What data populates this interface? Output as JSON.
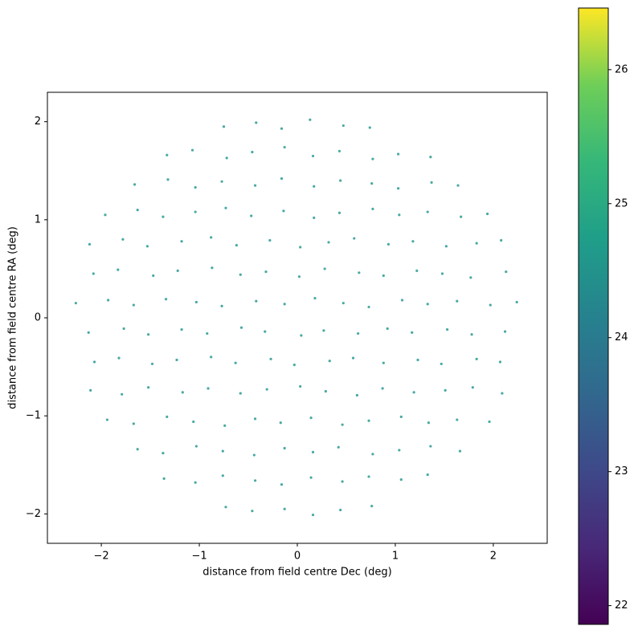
{
  "chart_data": {
    "type": "scatter",
    "x_label": "distance from field centre Dec (deg)",
    "y_label": "distance from field centre RA (deg)",
    "xlim": [
      -2.55,
      2.55
    ],
    "ylim": [
      -2.3,
      2.3
    ],
    "xticks": [
      {
        "value": -2,
        "label": "−2"
      },
      {
        "value": -1,
        "label": "−1"
      },
      0,
      1,
      2
    ],
    "yticks": [
      {
        "value": -2,
        "label": "−2"
      },
      {
        "value": -1,
        "label": "−1"
      },
      0,
      1,
      2
    ],
    "color": "#2a9a93",
    "x": [
      -0.75,
      -0.42,
      -0.16,
      0.13,
      0.47,
      0.74,
      -1.33,
      -1.07,
      -0.72,
      -0.46,
      -0.13,
      0.16,
      0.43,
      0.77,
      1.03,
      1.36,
      -1.66,
      -1.32,
      -1.04,
      -0.77,
      -0.43,
      -0.16,
      0.17,
      0.44,
      0.76,
      1.03,
      1.37,
      1.64,
      -1.96,
      -1.63,
      -1.37,
      -1.04,
      -0.73,
      -0.47,
      -0.14,
      0.17,
      0.43,
      0.77,
      1.04,
      1.33,
      1.67,
      1.94,
      -2.12,
      -1.78,
      -1.53,
      -1.18,
      -0.88,
      -0.62,
      -0.28,
      0.03,
      0.32,
      0.58,
      0.93,
      1.18,
      1.52,
      1.83,
      2.08,
      -2.08,
      -1.83,
      -1.47,
      -1.22,
      -0.87,
      -0.58,
      -0.32,
      0.02,
      0.28,
      0.63,
      0.88,
      1.22,
      1.48,
      1.77,
      2.13,
      -2.26,
      -1.93,
      -1.67,
      -1.34,
      -1.03,
      -0.77,
      -0.42,
      -0.13,
      0.18,
      0.47,
      0.73,
      1.07,
      1.33,
      1.63,
      1.97,
      2.24,
      -2.13,
      -1.77,
      -1.52,
      -1.18,
      -0.92,
      -0.57,
      -0.33,
      0.04,
      0.27,
      0.62,
      0.92,
      1.17,
      1.53,
      1.78,
      2.12,
      -2.07,
      -1.82,
      -1.48,
      -1.23,
      -0.88,
      -0.63,
      -0.27,
      -0.03,
      0.33,
      0.57,
      0.88,
      1.23,
      1.47,
      1.83,
      2.07,
      -2.11,
      -1.79,
      -1.52,
      -1.17,
      -0.91,
      -0.58,
      -0.31,
      0.03,
      0.29,
      0.61,
      0.87,
      1.19,
      1.51,
      1.79,
      2.09,
      -1.94,
      -1.67,
      -1.33,
      -1.06,
      -0.74,
      -0.43,
      -0.17,
      0.14,
      0.46,
      0.73,
      1.06,
      1.34,
      1.63,
      1.96,
      -1.63,
      -1.37,
      -1.03,
      -0.76,
      -0.44,
      -0.13,
      0.16,
      0.42,
      0.77,
      1.04,
      1.36,
      1.66,
      -1.36,
      -1.04,
      -0.76,
      -0.43,
      -0.16,
      0.14,
      0.46,
      0.73,
      1.06,
      1.33,
      -0.73,
      -0.46,
      -0.13,
      0.16,
      0.44,
      0.76
    ],
    "y": [
      1.95,
      1.99,
      1.93,
      2.02,
      1.96,
      1.94,
      1.66,
      1.71,
      1.63,
      1.69,
      1.74,
      1.65,
      1.7,
      1.62,
      1.67,
      1.64,
      1.36,
      1.41,
      1.33,
      1.39,
      1.35,
      1.42,
      1.34,
      1.4,
      1.37,
      1.32,
      1.38,
      1.35,
      1.05,
      1.1,
      1.03,
      1.08,
      1.12,
      1.04,
      1.09,
      1.02,
      1.07,
      1.11,
      1.05,
      1.08,
      1.03,
      1.06,
      0.75,
      0.8,
      0.73,
      0.78,
      0.82,
      0.74,
      0.79,
      0.72,
      0.77,
      0.81,
      0.75,
      0.78,
      0.73,
      0.76,
      0.79,
      0.45,
      0.49,
      0.43,
      0.48,
      0.51,
      0.44,
      0.47,
      0.42,
      0.5,
      0.46,
      0.43,
      0.48,
      0.45,
      0.41,
      0.47,
      0.15,
      0.18,
      0.13,
      0.19,
      0.16,
      0.12,
      0.17,
      0.14,
      0.2,
      0.15,
      0.11,
      0.18,
      0.14,
      0.17,
      0.13,
      0.16,
      -0.15,
      -0.11,
      -0.17,
      -0.12,
      -0.16,
      -0.1,
      -0.14,
      -0.18,
      -0.13,
      -0.16,
      -0.11,
      -0.15,
      -0.12,
      -0.17,
      -0.14,
      -0.45,
      -0.41,
      -0.47,
      -0.43,
      -0.4,
      -0.46,
      -0.42,
      -0.48,
      -0.44,
      -0.41,
      -0.46,
      -0.43,
      -0.47,
      -0.42,
      -0.45,
      -0.74,
      -0.78,
      -0.71,
      -0.76,
      -0.72,
      -0.77,
      -0.73,
      -0.7,
      -0.75,
      -0.79,
      -0.72,
      -0.76,
      -0.74,
      -0.71,
      -0.77,
      -1.04,
      -1.08,
      -1.01,
      -1.06,
      -1.1,
      -1.03,
      -1.07,
      -1.02,
      -1.09,
      -1.05,
      -1.01,
      -1.07,
      -1.04,
      -1.06,
      -1.34,
      -1.38,
      -1.31,
      -1.36,
      -1.4,
      -1.33,
      -1.37,
      -1.32,
      -1.39,
      -1.35,
      -1.31,
      -1.36,
      -1.64,
      -1.68,
      -1.61,
      -1.66,
      -1.7,
      -1.63,
      -1.67,
      -1.62,
      -1.65,
      -1.6,
      -1.93,
      -1.97,
      -1.95,
      -2.01,
      -1.96,
      -1.92
    ],
    "colorbar": {
      "colormap": "viridis",
      "ylim": [
        21.86,
        26.46
      ],
      "yticks": [
        22,
        23,
        24,
        25,
        26
      ]
    }
  }
}
